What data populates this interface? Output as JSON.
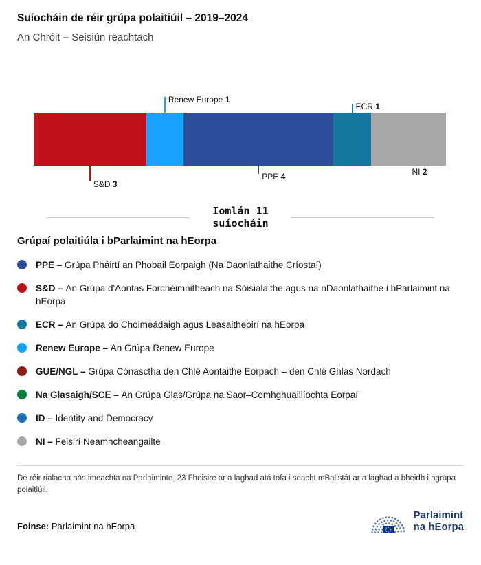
{
  "header": {
    "title": "Suíocháin de réir grúpa polaitiúil – 2019–2024",
    "subtitle": "An Chróit – Seisiún reachtach"
  },
  "chart_data": {
    "type": "bar",
    "orientation": "horizontal_stacked",
    "title": "Suíocháin de réir grúpa polaitiúil – 2019–2024",
    "subtitle": "An Chróit – Seisiún reachtach",
    "total": 11,
    "total_label_line1": "Iomlán 11",
    "total_label_line2": "suíocháin",
    "segments": [
      {
        "name": "S&D",
        "value": 3,
        "color": "#c01118",
        "label_side": "below",
        "tier": 2
      },
      {
        "name": "Renew Europe",
        "value": 1,
        "color": "#17a2ff",
        "label_side": "above",
        "tier": 2
      },
      {
        "name": "PPE",
        "value": 4,
        "color": "#2d4e9d",
        "label_side": "below",
        "tier": 1
      },
      {
        "name": "ECR",
        "value": 1,
        "color": "#13779e",
        "label_side": "above",
        "tier": 1
      },
      {
        "name": "NI",
        "value": 2,
        "color": "#a7a7a7",
        "label_side": "below",
        "tier": 0
      }
    ]
  },
  "legend": {
    "heading": "Grúpaí polaitiúla i bParlaimint na hEorpa",
    "items": [
      {
        "name": "PPE",
        "description": "Grúpa Pháirtí an Phobail Eorpaigh (Na Daonlathaithe Críostaí)",
        "color": "#2d4e9d"
      },
      {
        "name": "S&D",
        "description": "An Grúpa d'Aontas Forchéimnitheach na Sóisialaithe agus na nDaonlathaithe i bParlaimint na hEorpa",
        "color": "#c01118"
      },
      {
        "name": "ECR",
        "description": "An Grúpa do Choimeádaigh agus Leasaitheoirí na hEorpa",
        "color": "#13779e"
      },
      {
        "name": "Renew Europe",
        "description": "An Grúpa Renew Europe",
        "color": "#17a2ff"
      },
      {
        "name": "GUE/NGL",
        "description": "Grúpa Cónasctha den Chlé Aontaithe Eorpach – den Chlé Ghlas Nordach",
        "color": "#8f1d10"
      },
      {
        "name": "Na Glasaigh/SCE",
        "description": "An Grúpa Glas/Grúpa na Saor–Comhghuaillíochta Eorpaí",
        "color": "#0c8040"
      },
      {
        "name": "ID",
        "description": "Identity and Democracy",
        "color": "#1d70b7"
      },
      {
        "name": "NI",
        "description": "Feisirí Neamhcheangailte",
        "color": "#a7a7a7"
      }
    ]
  },
  "footnote": "De réir rialacha nós imeachta na Parlaiminte, 23 Fheisire ar a laghad atá tofa i seacht mBallstát ar a laghad a bheidh i ngrúpa polaitiúil.",
  "source": {
    "label": "Foinse:",
    "value": "Parlaimint na hEorpa"
  },
  "logo": {
    "line1": "Parlaimint",
    "line2": "na hEorpa"
  }
}
